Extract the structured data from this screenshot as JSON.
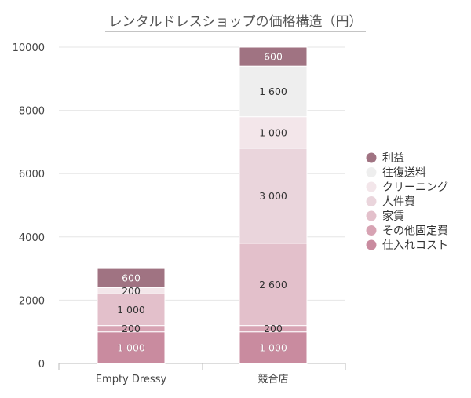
{
  "chart_data": {
    "type": "bar",
    "stacked": true,
    "title": "レンタルドレスショップの価格構造（円）",
    "categories": [
      "Empty Dressy",
      "競合店"
    ],
    "ylim": [
      0,
      10000
    ],
    "yticks": [
      0,
      2000,
      4000,
      6000,
      8000,
      10000
    ],
    "ytick_labels": [
      "0",
      "2000",
      "4000",
      "6000",
      "8000",
      "10000"
    ],
    "legend_position": "right",
    "series": [
      {
        "name": "仕入れコスト",
        "values": [
          1000,
          1000
        ],
        "labels": [
          "1 000",
          "1 000"
        ],
        "color": "#c98b9f",
        "label_color": "#ffffff"
      },
      {
        "name": "その他固定費",
        "values": [
          200,
          200
        ],
        "labels": [
          "200",
          "200"
        ],
        "color": "#d7a3b3",
        "label_color": "#333333"
      },
      {
        "name": "家賃",
        "values": [
          1000,
          2600
        ],
        "labels": [
          "1 000",
          "2 600"
        ],
        "color": "#e3c0cb",
        "label_color": "#333333"
      },
      {
        "name": "人件費",
        "values": [
          0,
          3000
        ],
        "labels": [
          "",
          "3 000"
        ],
        "color": "#ead5dc",
        "label_color": "#333333"
      },
      {
        "name": "クリーニング",
        "values": [
          200,
          1000
        ],
        "labels": [
          "200",
          "1 000"
        ],
        "color": "#f3e6ea",
        "label_color": "#333333"
      },
      {
        "name": "往復送料",
        "values": [
          0,
          1600
        ],
        "labels": [
          "",
          "1 600"
        ],
        "color": "#eeeeee",
        "label_color": "#333333"
      },
      {
        "name": "利益",
        "values": [
          600,
          600
        ],
        "labels": [
          "600",
          "600"
        ],
        "color": "#a07382",
        "label_color": "#ffffff"
      }
    ]
  }
}
